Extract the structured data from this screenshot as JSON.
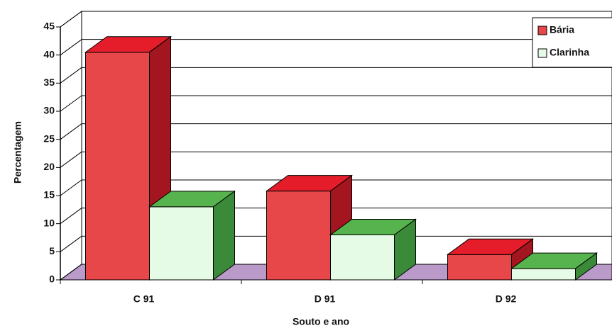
{
  "chart_data": {
    "type": "bar3d",
    "categories": [
      "C 91",
      "D 91",
      "D 92"
    ],
    "series": [
      {
        "name": "Bária",
        "color": "#e8474a",
        "values": [
          40.5,
          15.8,
          4.5
        ]
      },
      {
        "name": "Clarinha",
        "color": "#e6fbe6",
        "values": [
          13,
          8,
          2
        ]
      }
    ],
    "ylim": [
      0,
      45
    ],
    "yticks": [
      0,
      5,
      10,
      15,
      20,
      25,
      30,
      35,
      40,
      45
    ],
    "ylabel": "Percentagem",
    "xlabel": "Souto e ano",
    "grid": true,
    "legend": "upper right"
  }
}
